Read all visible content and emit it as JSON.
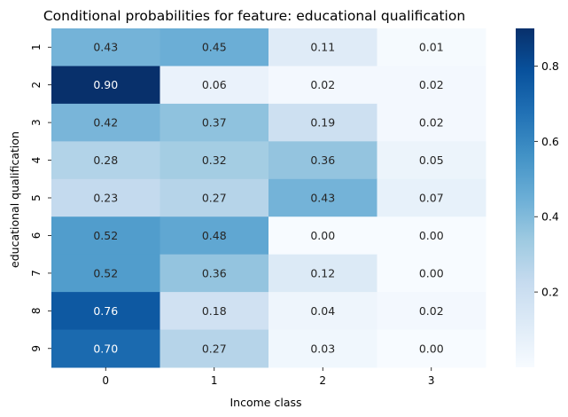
{
  "chart_data": {
    "type": "heatmap",
    "title": "Conditional probabilities for feature: educational qualification",
    "xlabel": "Income class",
    "ylabel": "educational qualification",
    "x_categories": [
      "0",
      "1",
      "2",
      "3"
    ],
    "y_categories": [
      "1",
      "2",
      "3",
      "4",
      "5",
      "6",
      "7",
      "8",
      "9"
    ],
    "values": [
      [
        0.43,
        0.45,
        0.11,
        0.01
      ],
      [
        0.9,
        0.06,
        0.02,
        0.02
      ],
      [
        0.42,
        0.37,
        0.19,
        0.02
      ],
      [
        0.28,
        0.32,
        0.36,
        0.05
      ],
      [
        0.23,
        0.27,
        0.43,
        0.07
      ],
      [
        0.52,
        0.48,
        0.0,
        0.0
      ],
      [
        0.52,
        0.36,
        0.12,
        0.0
      ],
      [
        0.76,
        0.18,
        0.04,
        0.02
      ],
      [
        0.7,
        0.27,
        0.03,
        0.0
      ]
    ],
    "value_format": "0.00",
    "colormap": "Blues",
    "colorbar": {
      "range": [
        0.0,
        0.9
      ],
      "ticks": [
        0.2,
        0.4,
        0.6,
        0.8
      ],
      "tick_labels": [
        "0.2",
        "0.4",
        "0.6",
        "0.8"
      ]
    },
    "colors": {
      "low": "#f7fbff",
      "high": "#08306b",
      "text_dark": "#262626",
      "text_light": "#ffffff"
    }
  }
}
